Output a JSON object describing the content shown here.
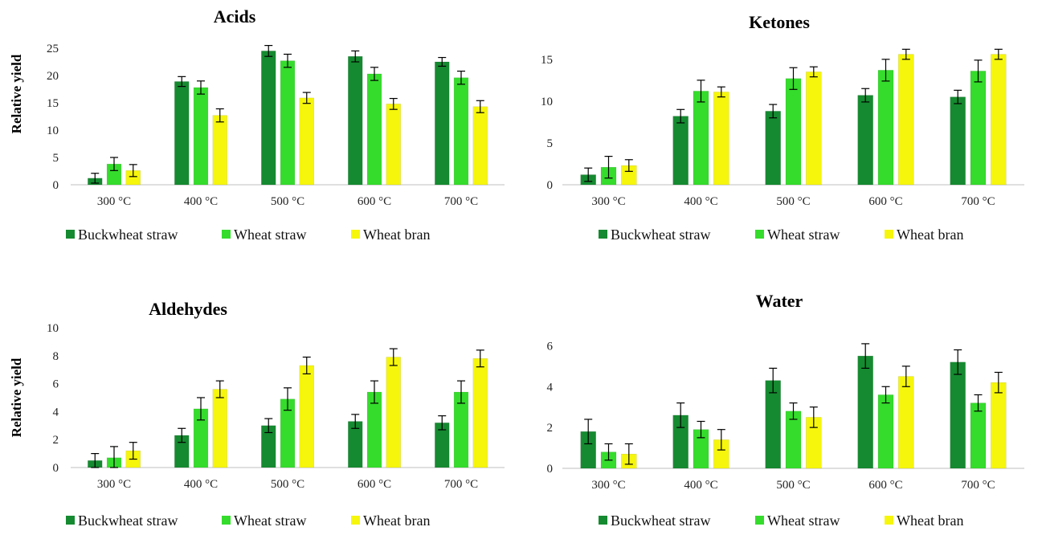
{
  "colors": {
    "buckwheat_straw": "#158a30",
    "wheat_straw": "#35dc2c",
    "wheat_bran": "#f6f60c",
    "axis": "#bfbfbf",
    "error_bar": "#000000"
  },
  "chart_data": [
    {
      "type": "bar",
      "title": "Acids",
      "ylabel": "Relative yield",
      "xlabel": "",
      "categories": [
        "300 °C",
        "400 °C",
        "500 °C",
        "600 °C",
        "700 °C"
      ],
      "ylim": [
        0,
        25
      ],
      "yticks": [
        0,
        5,
        10,
        15,
        20,
        25
      ],
      "grid": false,
      "legend": "bottom",
      "series": [
        {
          "name": "Buckwheat straw",
          "color_key": "buckwheat_straw",
          "values": [
            1.2,
            18.9,
            24.5,
            23.5,
            22.5
          ],
          "errors": [
            0.9,
            0.9,
            1.0,
            1.0,
            0.8
          ]
        },
        {
          "name": "Wheat straw",
          "color_key": "wheat_straw",
          "values": [
            3.8,
            17.8,
            22.7,
            20.3,
            19.6
          ],
          "errors": [
            1.2,
            1.2,
            1.2,
            1.2,
            1.2
          ]
        },
        {
          "name": "Wheat bran",
          "color_key": "wheat_bran",
          "values": [
            2.6,
            12.7,
            15.9,
            14.8,
            14.3
          ],
          "errors": [
            1.1,
            1.2,
            1.0,
            1.0,
            1.1
          ]
        }
      ]
    },
    {
      "type": "bar",
      "title": "Ketones",
      "ylabel": "",
      "xlabel": "",
      "categories": [
        "300 °C",
        "400 °C",
        "500 °C",
        "600 °C",
        "700 °C"
      ],
      "ylim": [
        0,
        17
      ],
      "yticks": [
        0,
        5,
        10,
        15
      ],
      "grid": false,
      "legend": "bottom",
      "series": [
        {
          "name": "Buckwheat straw",
          "color_key": "buckwheat_straw",
          "values": [
            1.2,
            8.2,
            8.8,
            10.7,
            10.5
          ],
          "errors": [
            0.8,
            0.8,
            0.8,
            0.8,
            0.8
          ]
        },
        {
          "name": "Wheat straw",
          "color_key": "wheat_straw",
          "values": [
            2.1,
            11.2,
            12.7,
            13.7,
            13.6
          ],
          "errors": [
            1.3,
            1.3,
            1.3,
            1.3,
            1.3
          ]
        },
        {
          "name": "Wheat bran",
          "color_key": "wheat_bran",
          "values": [
            2.3,
            11.1,
            13.5,
            15.6,
            15.6
          ],
          "errors": [
            0.7,
            0.6,
            0.6,
            0.6,
            0.6
          ]
        }
      ]
    },
    {
      "type": "bar",
      "title": "Aldehydes",
      "ylabel": "Relative yield",
      "xlabel": "",
      "categories": [
        "300 °C",
        "400 °C",
        "500 °C",
        "600 °C",
        "700 °C"
      ],
      "ylim": [
        0,
        10
      ],
      "yticks": [
        0,
        2,
        4,
        6,
        8,
        10
      ],
      "grid": false,
      "legend": "bottom",
      "series": [
        {
          "name": "Buckwheat straw",
          "color_key": "buckwheat_straw",
          "values": [
            0.5,
            2.3,
            3.0,
            3.3,
            3.2
          ],
          "errors": [
            0.5,
            0.5,
            0.5,
            0.5,
            0.5
          ]
        },
        {
          "name": "Wheat straw",
          "color_key": "wheat_straw",
          "values": [
            0.7,
            4.2,
            4.9,
            5.4,
            5.4
          ],
          "errors": [
            0.8,
            0.8,
            0.8,
            0.8,
            0.8
          ]
        },
        {
          "name": "Wheat bran",
          "color_key": "wheat_bran",
          "values": [
            1.2,
            5.6,
            7.3,
            7.9,
            7.8
          ],
          "errors": [
            0.6,
            0.6,
            0.6,
            0.6,
            0.6
          ]
        }
      ]
    },
    {
      "type": "bar",
      "title": "Water",
      "ylabel": "",
      "xlabel": "",
      "categories": [
        "300 °C",
        "400 °C",
        "500 °C",
        "600 °C",
        "700 °C"
      ],
      "ylim": [
        0,
        7
      ],
      "yticks": [
        0,
        2,
        4,
        6
      ],
      "grid": false,
      "legend": "bottom",
      "series": [
        {
          "name": "Buckwheat straw",
          "color_key": "buckwheat_straw",
          "values": [
            1.8,
            2.6,
            4.3,
            5.5,
            5.2
          ],
          "errors": [
            0.6,
            0.6,
            0.6,
            0.6,
            0.6
          ]
        },
        {
          "name": "Wheat straw",
          "color_key": "wheat_straw",
          "values": [
            0.8,
            1.9,
            2.8,
            3.6,
            3.2
          ],
          "errors": [
            0.4,
            0.4,
            0.4,
            0.4,
            0.4
          ]
        },
        {
          "name": "Wheat bran",
          "color_key": "wheat_bran",
          "values": [
            0.7,
            1.4,
            2.5,
            4.5,
            4.2
          ],
          "errors": [
            0.5,
            0.5,
            0.5,
            0.5,
            0.5
          ]
        }
      ]
    }
  ]
}
